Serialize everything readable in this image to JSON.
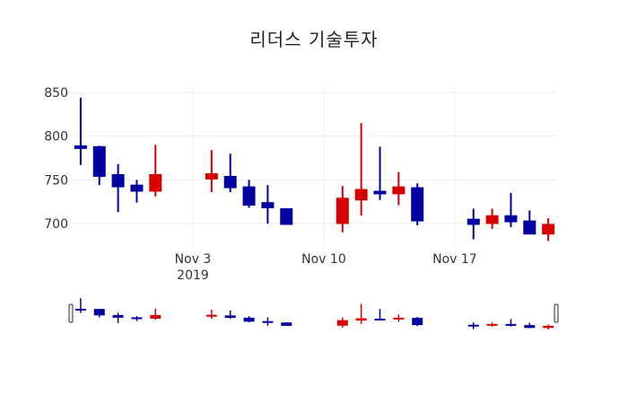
{
  "chart_data": {
    "type": "candlestick",
    "title": "리더스 기술투자",
    "xlabel": "",
    "ylabel": "",
    "ylim": [
      670,
      855
    ],
    "y_ticks": [
      700,
      750,
      800,
      850
    ],
    "x_ticks": [
      {
        "date": "2019-11-03",
        "label": "Nov 3",
        "sublabel": "2019"
      },
      {
        "date": "2019-11-10",
        "label": "Nov 10",
        "sublabel": ""
      },
      {
        "date": "2019-11-17",
        "label": "Nov 17",
        "sublabel": ""
      }
    ],
    "grid": true,
    "rangeslider": true,
    "increasing_color": "#d60000",
    "decreasing_color": "#0000a0",
    "x": [
      "2019-10-28",
      "2019-10-29",
      "2019-10-30",
      "2019-10-31",
      "2019-11-01",
      "2019-11-04",
      "2019-11-05",
      "2019-11-06",
      "2019-11-07",
      "2019-11-08",
      "2019-11-11",
      "2019-11-12",
      "2019-11-13",
      "2019-11-14",
      "2019-11-15",
      "2019-11-18",
      "2019-11-19",
      "2019-11-20",
      "2019-11-21",
      "2019-11-22"
    ],
    "open": [
      789,
      788,
      756,
      744,
      737,
      751,
      754,
      742,
      724,
      717,
      700,
      727,
      737,
      734,
      741,
      705,
      700,
      709,
      703,
      688
    ],
    "high": [
      844,
      789,
      768,
      750,
      790,
      784,
      780,
      750,
      744,
      717,
      743,
      815,
      788,
      759,
      746,
      717,
      717,
      735,
      715,
      706
    ],
    "low": [
      767,
      744,
      713,
      724,
      731,
      736,
      736,
      718,
      700,
      699,
      690,
      709,
      727,
      721,
      698,
      682,
      694,
      696,
      688,
      680
    ],
    "close": [
      787,
      754,
      742,
      737,
      756,
      757,
      741,
      721,
      718,
      699,
      729,
      739,
      734,
      742,
      703,
      699,
      709,
      702,
      688,
      699
    ]
  }
}
